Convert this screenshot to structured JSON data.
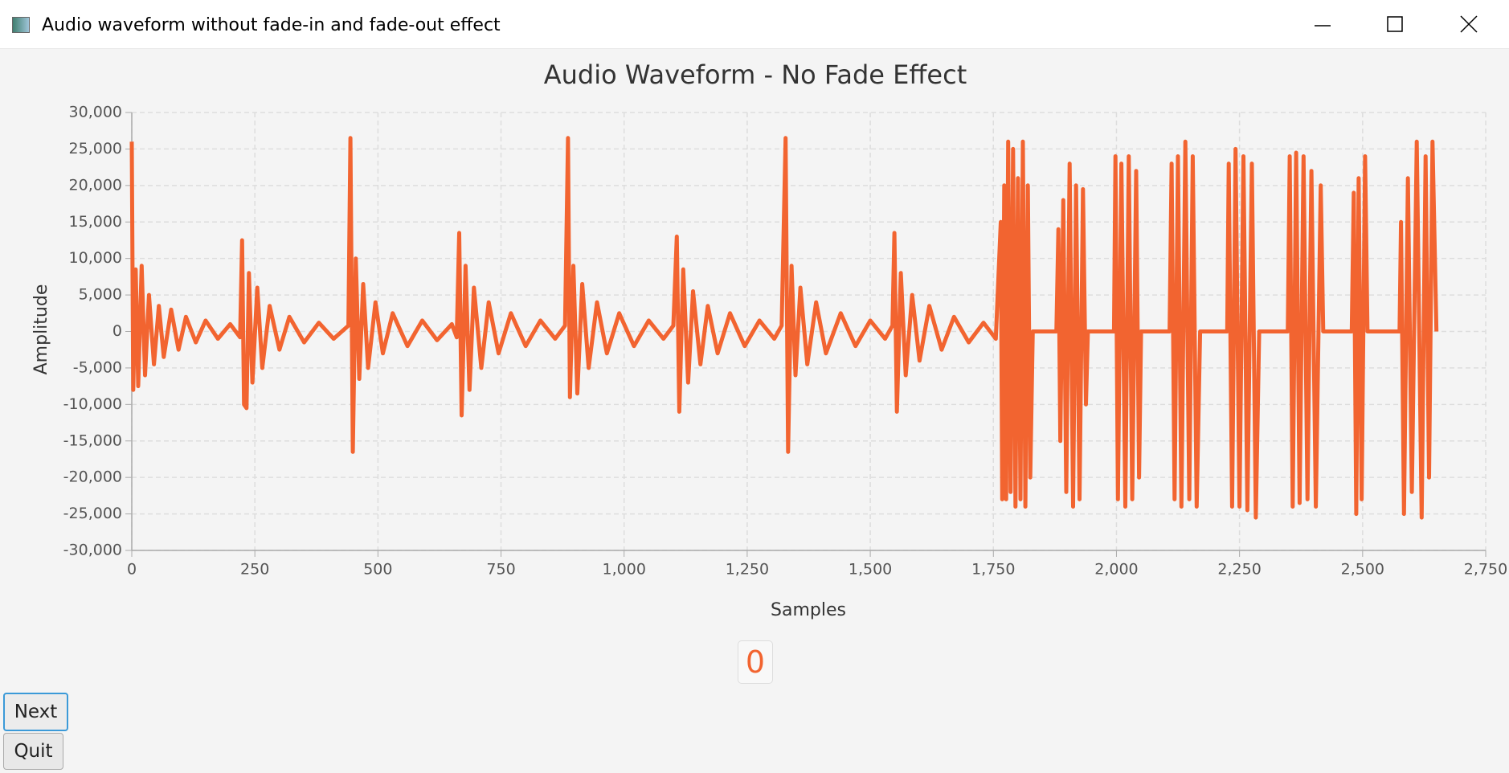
{
  "window": {
    "title": "Audio waveform without fade-in and fade-out effect"
  },
  "chart_data": {
    "type": "line",
    "title": "Audio Waveform - No Fade Effect",
    "x_label": "Samples",
    "y_label": "Amplitude",
    "x": [
      0,
      3,
      8,
      13,
      20,
      27,
      35,
      45,
      55,
      65,
      80,
      95,
      110,
      130,
      150,
      175,
      200,
      220,
      224,
      228,
      233,
      238,
      245,
      255,
      265,
      280,
      300,
      320,
      350,
      380,
      410,
      440,
      444,
      449,
      455,
      462,
      470,
      480,
      495,
      510,
      530,
      560,
      590,
      620,
      650,
      660,
      665,
      670,
      678,
      686,
      695,
      710,
      725,
      745,
      770,
      800,
      830,
      860,
      880,
      886,
      890,
      897,
      905,
      915,
      928,
      945,
      965,
      990,
      1020,
      1050,
      1080,
      1100,
      1107,
      1112,
      1120,
      1130,
      1140,
      1155,
      1170,
      1190,
      1215,
      1245,
      1275,
      1305,
      1320,
      1328,
      1333,
      1340,
      1348,
      1358,
      1372,
      1390,
      1410,
      1440,
      1470,
      1500,
      1530,
      1545,
      1549,
      1554,
      1562,
      1572,
      1585,
      1600,
      1620,
      1645,
      1670,
      1700,
      1730,
      1755,
      1765,
      1768,
      1772,
      1776,
      1780,
      1785,
      1790,
      1795,
      1800,
      1805,
      1810,
      1815,
      1820,
      1825,
      1830,
      1878,
      1882,
      1886,
      1892,
      1898,
      1905,
      1912,
      1918,
      1925,
      1932,
      1938,
      1942,
      1995,
      1998,
      2003,
      2010,
      2018,
      2025,
      2032,
      2040,
      2046,
      2050,
      2108,
      2112,
      2118,
      2125,
      2132,
      2140,
      2148,
      2155,
      2163,
      2170,
      2225,
      2228,
      2235,
      2242,
      2250,
      2258,
      2266,
      2275,
      2283,
      2290,
      2348,
      2352,
      2358,
      2365,
      2372,
      2380,
      2388,
      2396,
      2405,
      2415,
      2420,
      2478,
      2482,
      2487,
      2492,
      2498,
      2505,
      2510,
      2575,
      2578,
      2584,
      2592,
      2600,
      2610,
      2620,
      2628,
      2635,
      2642,
      2650
    ],
    "series": [
      {
        "color": "#f26430",
        "values": [
          26000,
          -8000,
          8500,
          -7500,
          9000,
          -6000,
          5000,
          -4500,
          3500,
          -3500,
          3000,
          -2500,
          2000,
          -1500,
          1500,
          -1000,
          1000,
          -800,
          12500,
          -10000,
          -10500,
          8000,
          -7000,
          6000,
          -5000,
          3500,
          -2500,
          2000,
          -1500,
          1200,
          -1000,
          800,
          26500,
          -16500,
          10000,
          -6500,
          6500,
          -5000,
          4000,
          -3000,
          2500,
          -2000,
          1500,
          -1200,
          1000,
          -800,
          13500,
          -11500,
          9000,
          -8000,
          6000,
          -5000,
          4000,
          -3000,
          2500,
          -2000,
          1500,
          -1000,
          800,
          26500,
          -9000,
          9000,
          -8500,
          6500,
          -5000,
          4000,
          -3000,
          2500,
          -2000,
          1500,
          -1000,
          800,
          13000,
          -11000,
          8500,
          -7000,
          5500,
          -4500,
          3500,
          -3000,
          2500,
          -2000,
          1500,
          -1000,
          800,
          26500,
          -16500,
          9000,
          -6000,
          6000,
          -4500,
          4000,
          -3000,
          2500,
          -2000,
          1500,
          -1000,
          800,
          13500,
          -11000,
          8000,
          -6000,
          5000,
          -4000,
          3500,
          -2500,
          2000,
          -1500,
          1200,
          -1000,
          15000,
          -23000,
          20000,
          -23000,
          26000,
          -22000,
          25000,
          -24000,
          21000,
          -23000,
          26000,
          -24000,
          20000,
          -20000,
          0,
          0,
          14000,
          -15000,
          18000,
          -22000,
          23000,
          -24000,
          20000,
          -23000,
          19500,
          -10000,
          0,
          0,
          24000,
          -23000,
          23000,
          -24000,
          24000,
          -23000,
          22000,
          -20000,
          0,
          0,
          23000,
          -23000,
          24000,
          -24000,
          26000,
          -23000,
          24000,
          -24000,
          0,
          0,
          23000,
          -24000,
          25000,
          -24000,
          24000,
          -24500,
          23000,
          -25500,
          0,
          0,
          24000,
          -24000,
          24500,
          -23500,
          24000,
          -23000,
          22000,
          -24000,
          20000,
          0,
          0,
          19000,
          -25000,
          21000,
          -23000,
          24000,
          0,
          0,
          15000,
          -25000,
          21000,
          -22000,
          26000,
          -25500,
          24000,
          -20000,
          26000,
          0
        ]
      }
    ],
    "xlim": [
      0,
      2750
    ],
    "xticks": [
      0,
      250,
      500,
      750,
      {
        "value": 1000,
        "label": "1,000"
      },
      {
        "value": 1250,
        "label": "1,250"
      },
      {
        "value": 1500,
        "label": "1,500"
      },
      {
        "value": 1750,
        "label": "1,750"
      },
      {
        "value": 2000,
        "label": "2,000"
      },
      {
        "value": 2250,
        "label": "2,250"
      },
      {
        "value": 2500,
        "label": "2,500"
      },
      {
        "value": 2750,
        "label": "2,750"
      }
    ],
    "ylim": [
      -30000,
      30000
    ],
    "yticks": [
      {
        "value": -30000,
        "label": "-30,000"
      },
      {
        "value": -25000,
        "label": "-25,000"
      },
      {
        "value": -20000,
        "label": "-20,000"
      },
      {
        "value": -15000,
        "label": "-15,000"
      },
      {
        "value": -10000,
        "label": "-10,000"
      },
      {
        "value": -5000,
        "label": "-5,000"
      },
      0,
      {
        "value": 5000,
        "label": "5,000"
      },
      {
        "value": 10000,
        "label": "10,000"
      },
      {
        "value": 15000,
        "label": "15,000"
      },
      {
        "value": 20000,
        "label": "20,000"
      },
      {
        "value": 25000,
        "label": "25,000"
      },
      {
        "value": 30000,
        "label": "30,000"
      }
    ],
    "grid": true
  },
  "counter": "0",
  "buttons": {
    "next": "Next",
    "quit": "Quit"
  }
}
